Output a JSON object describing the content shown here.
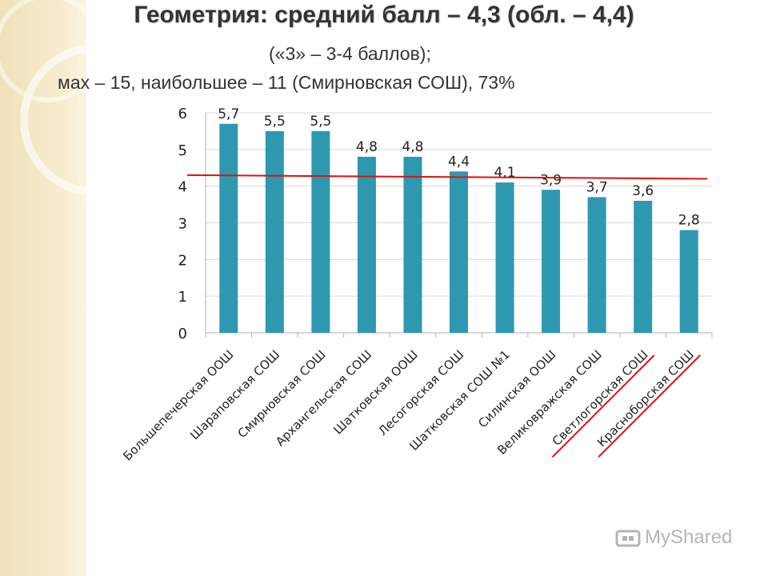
{
  "slide": {
    "title": "Геометрия: средний балл – 4,3 (обл. – 4,4)",
    "subtitle_line1": "(«3» – 3-4 баллов);",
    "subtitle_line2": "мах – 15, наибольшее – 11 (Смирновская СОШ), 73%"
  },
  "watermark": {
    "text": "MyShared",
    "icon": "mushroom-logo-icon"
  },
  "colors": {
    "bar": "#2e98b0",
    "average_line": "#e01010",
    "underline": "#e01010",
    "axis": "#b0b0b0",
    "grid": "#d9d9d9"
  },
  "chart_data": {
    "type": "bar",
    "categories": [
      "Большепечерская ООШ",
      "Шараповская СОШ",
      "Смирновская СОШ",
      "Архангельская СОШ",
      "Шатковская ООШ",
      "Лесогорская СОШ",
      "Шатковская СОШ №1",
      "Силинская ООШ",
      "Великовражская СОШ",
      "Светлогорская СОШ",
      "Красноборская СОШ"
    ],
    "values": [
      5.7,
      5.5,
      5.5,
      4.8,
      4.8,
      4.4,
      4.1,
      3.9,
      3.7,
      3.6,
      2.8
    ],
    "data_labels": [
      "5,7",
      "5,5",
      "5,5",
      "4,8",
      "4,8",
      "4,4",
      "4,1",
      "3,9",
      "3,7",
      "3,6",
      "2,8"
    ],
    "y_ticks": [
      "0",
      "1",
      "2",
      "3",
      "4",
      "5",
      "6"
    ],
    "ylim": [
      0,
      6
    ],
    "grid": true,
    "reference_line": {
      "from": 4.3,
      "to": 4.2,
      "color": "#e01010"
    },
    "underlined_categories": [
      "Светлогорская СОШ",
      "Красноборская СОШ"
    ]
  }
}
